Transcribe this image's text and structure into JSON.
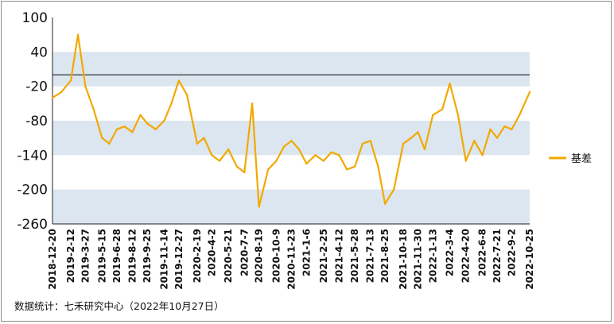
{
  "chart_data": {
    "type": "line",
    "title": "",
    "xlabel": "",
    "ylabel": "",
    "ylim": [
      -260,
      100
    ],
    "yticks": [
      100,
      40,
      -20,
      -80,
      -140,
      -200,
      -260
    ],
    "x_tick_labels": [
      "2018-12-20",
      "2019-2-12",
      "2019-3-27",
      "2019-5-15",
      "2019-6-28",
      "2019-8-12",
      "2019-9-25",
      "2019-11-14",
      "2019-12-27",
      "2020-2-19",
      "2020-4-2",
      "2020-5-21",
      "2020-7-7",
      "2020-8-19",
      "2020-10-9",
      "2020-11-23",
      "2021-1-6",
      "2021-2-25",
      "2021-4-12",
      "2021-5-28",
      "2021-7-13",
      "2021-8-25",
      "2021-10-18",
      "2021-11-30",
      "2022-1-13",
      "2022-3-4",
      "2022-4-20",
      "2022-6-8",
      "2022-7-21",
      "2022-9-2",
      "2022-10-25"
    ],
    "reference_line": 0,
    "banded_background": true,
    "legend_position": "right",
    "series": [
      {
        "name": "基差",
        "color": "#f2a900",
        "x": [
          "2018-12-20",
          "2019-1-15",
          "2019-2-12",
          "2019-3-5",
          "2019-3-27",
          "2019-4-20",
          "2019-5-15",
          "2019-6-5",
          "2019-6-28",
          "2019-7-20",
          "2019-8-12",
          "2019-9-5",
          "2019-9-25",
          "2019-10-20",
          "2019-11-14",
          "2019-12-5",
          "2019-12-27",
          "2020-1-20",
          "2020-2-19",
          "2020-3-10",
          "2020-4-2",
          "2020-4-25",
          "2020-5-21",
          "2020-6-15",
          "2020-7-7",
          "2020-7-30",
          "2020-8-19",
          "2020-9-15",
          "2020-10-9",
          "2020-11-1",
          "2020-11-23",
          "2020-12-15",
          "2021-1-6",
          "2021-2-1",
          "2021-2-25",
          "2021-3-20",
          "2021-4-12",
          "2021-5-5",
          "2021-5-28",
          "2021-6-20",
          "2021-7-13",
          "2021-8-5",
          "2021-8-25",
          "2021-9-20",
          "2021-10-18",
          "2021-11-10",
          "2021-11-30",
          "2021-12-20",
          "2022-1-13",
          "2022-2-10",
          "2022-3-4",
          "2022-3-28",
          "2022-4-20",
          "2022-5-15",
          "2022-6-8",
          "2022-7-1",
          "2022-7-21",
          "2022-8-12",
          "2022-9-2",
          "2022-9-25",
          "2022-10-25"
        ],
        "values": [
          -40,
          -30,
          -10,
          70,
          -20,
          -60,
          -110,
          -120,
          -95,
          -90,
          -100,
          -70,
          -85,
          -95,
          -80,
          -50,
          -10,
          -35,
          -120,
          -110,
          -140,
          -150,
          -130,
          -160,
          -170,
          -50,
          -230,
          -165,
          -150,
          -125,
          -115,
          -130,
          -155,
          -140,
          -150,
          -135,
          -140,
          -165,
          -160,
          -120,
          -115,
          -160,
          -225,
          -200,
          -120,
          -110,
          -100,
          -130,
          -70,
          -60,
          -15,
          -70,
          -150,
          -115,
          -140,
          -95,
          -110,
          -90,
          -95,
          -70,
          -30
        ]
      }
    ]
  },
  "legend": {
    "label": "基差"
  },
  "source_note": "数据统计：七禾研究中心（2022年10月27日）"
}
